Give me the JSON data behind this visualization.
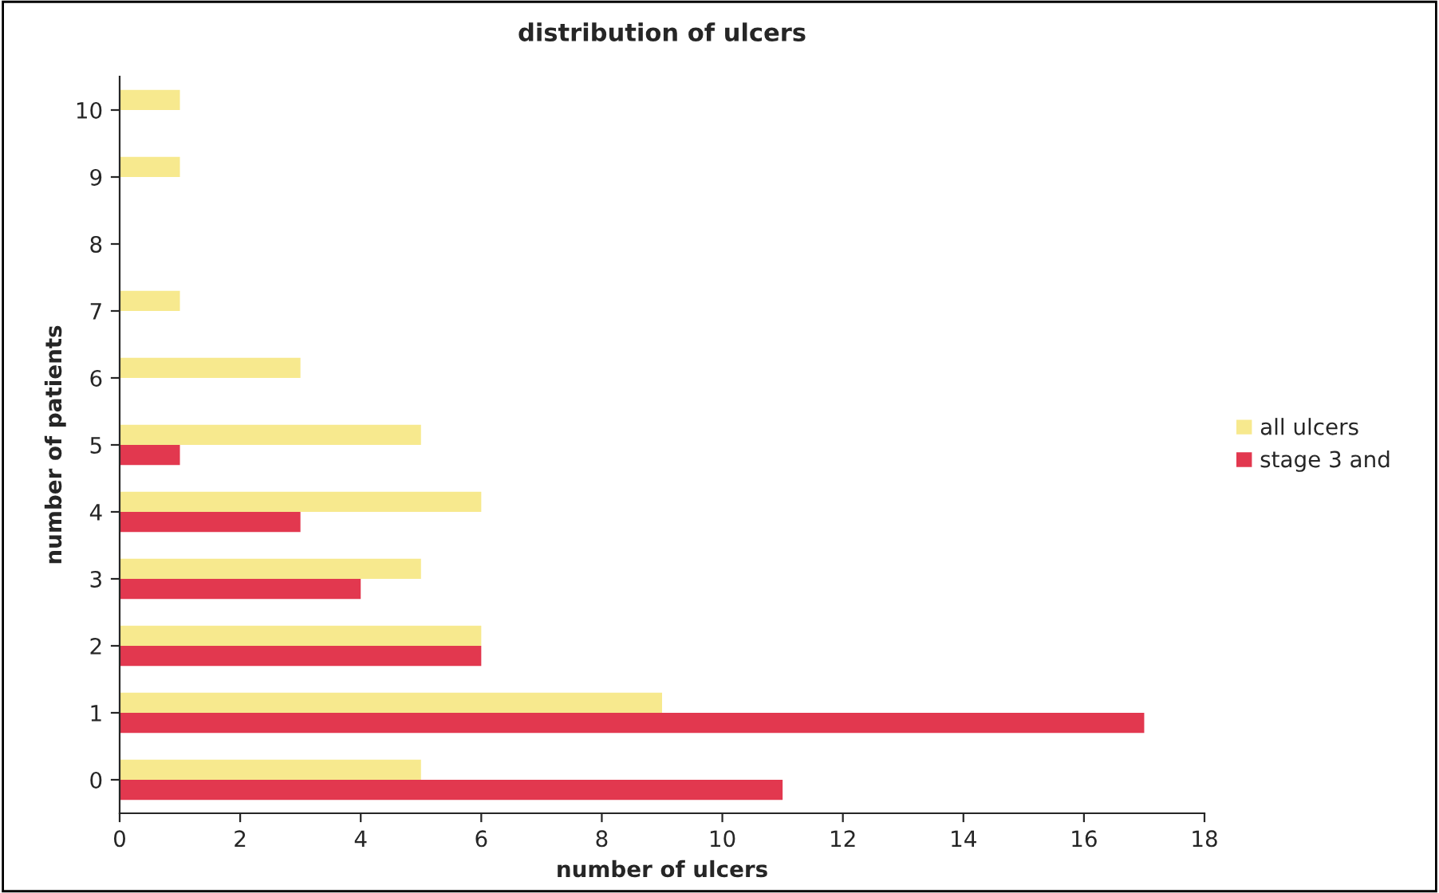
{
  "chart_data": {
    "type": "bar",
    "orientation": "horizontal",
    "title": "distribution of ulcers",
    "xlabel": "number of ulcers",
    "ylabel": "number of patients",
    "categories": [
      "10",
      "9",
      "8",
      "7",
      "6",
      "5",
      "4",
      "3",
      "2",
      "1",
      "0"
    ],
    "series": [
      {
        "name": "all ulcers",
        "color": "#f7e98e",
        "values": [
          1,
          1,
          0,
          1,
          3,
          5,
          6,
          5,
          6,
          9,
          5
        ]
      },
      {
        "name": "stage 3 and",
        "color": "#e2384f",
        "values": [
          0,
          0,
          0,
          0,
          0,
          1,
          3,
          4,
          6,
          17,
          11
        ]
      }
    ],
    "xlim": [
      0,
      18
    ],
    "xticks": [
      0,
      2,
      4,
      6,
      8,
      10,
      12,
      14,
      16,
      18
    ],
    "grid": false,
    "legend": "right"
  }
}
